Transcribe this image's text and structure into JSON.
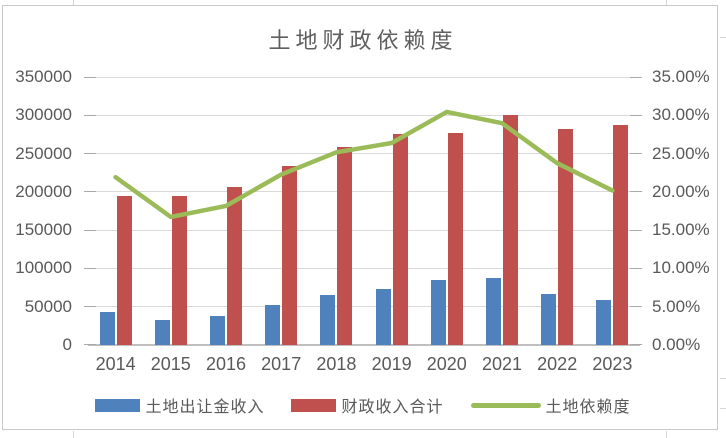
{
  "chart_data": {
    "type": "combo",
    "title": "土地财政依赖度",
    "categories": [
      "2014",
      "2015",
      "2016",
      "2017",
      "2018",
      "2019",
      "2020",
      "2021",
      "2022",
      "2023"
    ],
    "series": [
      {
        "name": "土地出让金收入",
        "type": "bar",
        "axis": "left",
        "color": "#4F81BD",
        "values": [
          42606,
          32547,
          37457,
          52059,
          65096,
          72517,
          84142,
          87051,
          66854,
          57996
        ]
      },
      {
        "name": "财政收入合计",
        "type": "bar",
        "axis": "left",
        "color": "#C0504D",
        "values": [
          194463,
          194607,
          206224,
          234055,
          258765,
          274906,
          276402,
          300563,
          281582,
          287489
        ]
      },
      {
        "name": "土地依赖度",
        "type": "line",
        "axis": "right",
        "color": "#9BBB59",
        "values_percent": [
          21.91,
          16.72,
          18.16,
          22.24,
          25.16,
          26.38,
          30.44,
          28.96,
          23.74,
          20.17
        ]
      }
    ],
    "left_axis": {
      "min": 0,
      "max": 350000,
      "step": 50000,
      "tick_labels": [
        "0",
        "50000",
        "100000",
        "150000",
        "200000",
        "250000",
        "300000",
        "350000"
      ]
    },
    "right_axis": {
      "min_percent": 0,
      "max_percent": 35,
      "step_percent": 5,
      "tick_labels": [
        "0.00%",
        "5.00%",
        "10.00%",
        "15.00%",
        "20.00%",
        "25.00%",
        "30.00%",
        "35.00%"
      ]
    },
    "grid": "horizontal",
    "legend_position": "bottom"
  }
}
